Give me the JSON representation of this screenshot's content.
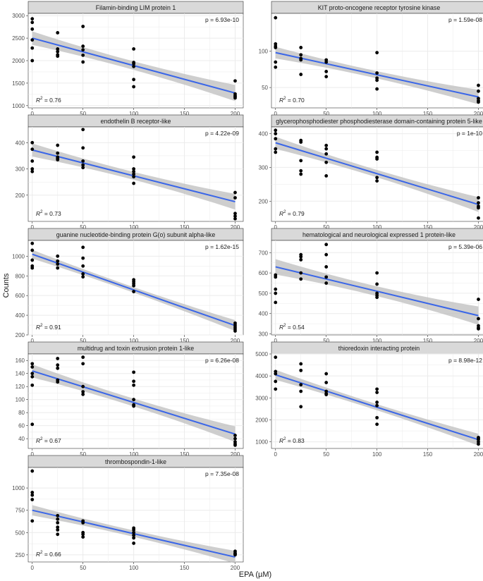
{
  "figure": {
    "ylabel": "Counts",
    "xlabel": "EPA (µM)",
    "r2_prefix": "R",
    "r2_sup": "2",
    "x_ticks": [
      "0",
      "50",
      "100",
      "150",
      "200"
    ]
  },
  "colors": {
    "strip_bg": "#d9d9d9",
    "panel_bg": "#ffffff",
    "grid": "#ebebeb",
    "line": "#3a66e8",
    "band": "#bdbdbd",
    "point": "#000000",
    "axis_text": "#4d4d4d"
  },
  "chart_data": [
    {
      "type": "scatter",
      "title": "Filamin-binding LIM protein 1",
      "p_label": "p = 6.93e-10",
      "r2": "0.76",
      "x_domain": [
        -4,
        208
      ],
      "ylim": [
        950,
        3050
      ],
      "y_ticks": [
        1000,
        1500,
        2000,
        2500,
        3000
      ],
      "points": [
        [
          0,
          2930
        ],
        [
          0,
          2850
        ],
        [
          0,
          2700
        ],
        [
          0,
          2460
        ],
        [
          0,
          2280
        ],
        [
          0,
          2000
        ],
        [
          25,
          2620
        ],
        [
          25,
          2260
        ],
        [
          25,
          2200
        ],
        [
          25,
          2130
        ],
        [
          25,
          2100
        ],
        [
          50,
          2760
        ],
        [
          50,
          2320
        ],
        [
          50,
          2240
        ],
        [
          50,
          2120
        ],
        [
          50,
          1970
        ],
        [
          100,
          2260
        ],
        [
          100,
          1960
        ],
        [
          100,
          1930
        ],
        [
          100,
          1870
        ],
        [
          100,
          1580
        ],
        [
          100,
          1420
        ],
        [
          200,
          1550
        ],
        [
          200,
          1260
        ],
        [
          200,
          1220
        ],
        [
          200,
          1200
        ],
        [
          200,
          1170
        ]
      ],
      "fit": [
        [
          0,
          2500
        ],
        [
          200,
          1280
        ]
      ],
      "band_halfwidth": [
        150,
        95,
        180
      ]
    },
    {
      "type": "scatter",
      "title": "KIT proto-oncogene receptor tyrosine kinase",
      "p_label": "p = 1.59e-08",
      "r2": "0.70",
      "x_domain": [
        -4,
        208
      ],
      "ylim": [
        22,
        152
      ],
      "y_ticks": [
        50,
        100
      ],
      "points": [
        [
          0,
          146
        ],
        [
          0,
          110
        ],
        [
          0,
          107
        ],
        [
          0,
          105
        ],
        [
          0,
          85
        ],
        [
          0,
          78
        ],
        [
          25,
          105
        ],
        [
          25,
          95
        ],
        [
          25,
          90
        ],
        [
          25,
          88
        ],
        [
          25,
          68
        ],
        [
          50,
          88
        ],
        [
          50,
          85
        ],
        [
          50,
          72
        ],
        [
          50,
          65
        ],
        [
          100,
          98
        ],
        [
          100,
          70
        ],
        [
          100,
          63
        ],
        [
          100,
          60
        ],
        [
          100,
          48
        ],
        [
          200,
          53
        ],
        [
          200,
          45
        ],
        [
          200,
          35
        ],
        [
          200,
          32
        ],
        [
          200,
          30
        ]
      ],
      "fit": [
        [
          0,
          98
        ],
        [
          200,
          37
        ]
      ],
      "band_halfwidth": [
        8,
        5,
        10
      ]
    },
    {
      "type": "scatter",
      "title": "endothelin B receptor-like",
      "p_label": "p = 4.22e-09",
      "r2": "0.73",
      "x_domain": [
        -4,
        208
      ],
      "ylim": [
        100,
        460
      ],
      "y_ticks": [
        200,
        300,
        400
      ],
      "points": [
        [
          0,
          400
        ],
        [
          0,
          375
        ],
        [
          0,
          330
        ],
        [
          0,
          300
        ],
        [
          0,
          290
        ],
        [
          25,
          390
        ],
        [
          25,
          360
        ],
        [
          25,
          345
        ],
        [
          25,
          340
        ],
        [
          25,
          335
        ],
        [
          50,
          450
        ],
        [
          50,
          380
        ],
        [
          50,
          330
        ],
        [
          50,
          315
        ],
        [
          50,
          305
        ],
        [
          100,
          345
        ],
        [
          100,
          300
        ],
        [
          100,
          290
        ],
        [
          100,
          280
        ],
        [
          100,
          270
        ],
        [
          100,
          245
        ],
        [
          200,
          210
        ],
        [
          200,
          190
        ],
        [
          200,
          130
        ],
        [
          200,
          120
        ],
        [
          200,
          110
        ]
      ],
      "fit": [
        [
          0,
          372
        ],
        [
          200,
          175
        ]
      ],
      "band_halfwidth": [
        25,
        15,
        30
      ]
    },
    {
      "type": "scatter",
      "title": "glycerophosphodiester phosphodiesterase domain-containing protein 5-like",
      "p_label": "p = 1e-10",
      "r2": "0.79",
      "x_domain": [
        -4,
        208
      ],
      "ylim": [
        140,
        420
      ],
      "y_ticks": [
        200,
        300,
        400
      ],
      "points": [
        [
          0,
          410
        ],
        [
          0,
          400
        ],
        [
          0,
          385
        ],
        [
          0,
          355
        ],
        [
          0,
          345
        ],
        [
          25,
          380
        ],
        [
          25,
          375
        ],
        [
          25,
          320
        ],
        [
          25,
          290
        ],
        [
          25,
          280
        ],
        [
          50,
          365
        ],
        [
          50,
          355
        ],
        [
          50,
          340
        ],
        [
          50,
          315
        ],
        [
          50,
          275
        ],
        [
          100,
          345
        ],
        [
          100,
          330
        ],
        [
          100,
          325
        ],
        [
          100,
          270
        ],
        [
          100,
          260
        ],
        [
          200,
          210
        ],
        [
          200,
          195
        ],
        [
          200,
          185
        ],
        [
          200,
          180
        ],
        [
          200,
          150
        ]
      ],
      "fit": [
        [
          0,
          373
        ],
        [
          200,
          190
        ]
      ],
      "band_halfwidth": [
        18,
        11,
        22
      ]
    },
    {
      "type": "scatter",
      "title": "guanine nucleotide-binding protein G(o) subunit alpha-like",
      "p_label": "p = 1.62e-15",
      "r2": "0.91",
      "x_domain": [
        -4,
        208
      ],
      "ylim": [
        200,
        1160
      ],
      "y_ticks": [
        200,
        400,
        600,
        800,
        1000
      ],
      "points": [
        [
          0,
          1130
        ],
        [
          0,
          1060
        ],
        [
          0,
          960
        ],
        [
          0,
          900
        ],
        [
          0,
          880
        ],
        [
          25,
          1000
        ],
        [
          25,
          950
        ],
        [
          25,
          920
        ],
        [
          25,
          880
        ],
        [
          50,
          1090
        ],
        [
          50,
          980
        ],
        [
          50,
          900
        ],
        [
          50,
          820
        ],
        [
          50,
          790
        ],
        [
          100,
          760
        ],
        [
          100,
          740
        ],
        [
          100,
          720
        ],
        [
          100,
          700
        ],
        [
          100,
          640
        ],
        [
          200,
          320
        ],
        [
          200,
          300
        ],
        [
          200,
          280
        ],
        [
          200,
          260
        ],
        [
          200,
          240
        ]
      ],
      "fit": [
        [
          0,
          1020
        ],
        [
          200,
          295
        ]
      ],
      "band_halfwidth": [
        45,
        28,
        55
      ]
    },
    {
      "type": "scatter",
      "title": "hematological and neurological expressed 1 protein-like",
      "p_label": "p = 5.39e-06",
      "r2": "0.54",
      "x_domain": [
        -4,
        208
      ],
      "ylim": [
        295,
        760
      ],
      "y_ticks": [
        300,
        400,
        500,
        600,
        700
      ],
      "points": [
        [
          0,
          590
        ],
        [
          0,
          580
        ],
        [
          0,
          520
        ],
        [
          0,
          500
        ],
        [
          0,
          455
        ],
        [
          25,
          690
        ],
        [
          25,
          680
        ],
        [
          25,
          665
        ],
        [
          25,
          600
        ],
        [
          25,
          570
        ],
        [
          50,
          740
        ],
        [
          50,
          690
        ],
        [
          50,
          630
        ],
        [
          50,
          580
        ],
        [
          50,
          550
        ],
        [
          100,
          600
        ],
        [
          100,
          545
        ],
        [
          100,
          500
        ],
        [
          100,
          490
        ],
        [
          100,
          480
        ],
        [
          200,
          470
        ],
        [
          200,
          375
        ],
        [
          200,
          340
        ],
        [
          200,
          330
        ],
        [
          200,
          325
        ]
      ],
      "fit": [
        [
          0,
          630
        ],
        [
          200,
          390
        ]
      ],
      "band_halfwidth": [
        38,
        24,
        45
      ]
    },
    {
      "type": "scatter",
      "title": "multidrug and toxin extrusion protein 1-like",
      "p_label": "p = 6.26e-08",
      "r2": "0.67",
      "x_domain": [
        -4,
        208
      ],
      "ylim": [
        25,
        170
      ],
      "y_ticks": [
        40,
        60,
        80,
        100,
        120,
        140,
        160
      ],
      "points": [
        [
          0,
          155
        ],
        [
          0,
          150
        ],
        [
          0,
          140
        ],
        [
          0,
          135
        ],
        [
          0,
          122
        ],
        [
          0,
          62
        ],
        [
          25,
          163
        ],
        [
          25,
          153
        ],
        [
          25,
          148
        ],
        [
          25,
          130
        ],
        [
          25,
          127
        ],
        [
          50,
          165
        ],
        [
          50,
          155
        ],
        [
          50,
          120
        ],
        [
          50,
          112
        ],
        [
          50,
          108
        ],
        [
          100,
          142
        ],
        [
          100,
          128
        ],
        [
          100,
          122
        ],
        [
          100,
          100
        ],
        [
          100,
          92
        ],
        [
          100,
          90
        ],
        [
          200,
          45
        ],
        [
          200,
          40
        ],
        [
          200,
          35
        ],
        [
          200,
          32
        ],
        [
          200,
          30
        ]
      ],
      "fit": [
        [
          0,
          144
        ],
        [
          200,
          47
        ]
      ],
      "band_halfwidth": [
        10,
        6,
        12
      ]
    },
    {
      "type": "scatter",
      "title": "thioredoxin interacting protein",
      "p_label": "p = 8.98e-12",
      "r2": "0.83",
      "x_domain": [
        -4,
        208
      ],
      "ylim": [
        700,
        5000
      ],
      "y_ticks": [
        1000,
        2000,
        3000,
        4000,
        5000
      ],
      "points": [
        [
          0,
          4850
        ],
        [
          0,
          4200
        ],
        [
          0,
          4100
        ],
        [
          0,
          3750
        ],
        [
          0,
          3400
        ],
        [
          25,
          4550
        ],
        [
          25,
          4250
        ],
        [
          25,
          3600
        ],
        [
          25,
          3300
        ],
        [
          25,
          2600
        ],
        [
          50,
          4100
        ],
        [
          50,
          3700
        ],
        [
          50,
          3300
        ],
        [
          50,
          3200
        ],
        [
          50,
          3150
        ],
        [
          100,
          3400
        ],
        [
          100,
          3250
        ],
        [
          100,
          2800
        ],
        [
          100,
          2650
        ],
        [
          100,
          2100
        ],
        [
          100,
          1800
        ],
        [
          200,
          1200
        ],
        [
          200,
          1150
        ],
        [
          200,
          1100
        ],
        [
          200,
          1000
        ],
        [
          200,
          900
        ]
      ],
      "fit": [
        [
          0,
          4050
        ],
        [
          200,
          1100
        ]
      ],
      "band_halfwidth": [
        230,
        140,
        270
      ]
    },
    {
      "type": "scatter",
      "title": "thrombospondin-1-like",
      "p_label": "p = 7.35e-08",
      "r2": "0.66",
      "x_domain": [
        -4,
        208
      ],
      "ylim": [
        170,
        1230
      ],
      "y_ticks": [
        250,
        500,
        750,
        1000
      ],
      "points": [
        [
          0,
          1190
        ],
        [
          0,
          950
        ],
        [
          0,
          920
        ],
        [
          0,
          870
        ],
        [
          0,
          630
        ],
        [
          25,
          690
        ],
        [
          25,
          650
        ],
        [
          25,
          610
        ],
        [
          25,
          560
        ],
        [
          25,
          530
        ],
        [
          25,
          480
        ],
        [
          50,
          630
        ],
        [
          50,
          610
        ],
        [
          50,
          500
        ],
        [
          50,
          480
        ],
        [
          50,
          450
        ],
        [
          100,
          550
        ],
        [
          100,
          530
        ],
        [
          100,
          500
        ],
        [
          100,
          470
        ],
        [
          100,
          440
        ],
        [
          100,
          380
        ],
        [
          200,
          290
        ],
        [
          200,
          270
        ],
        [
          200,
          260
        ],
        [
          200,
          250
        ]
      ],
      "fit": [
        [
          0,
          750
        ],
        [
          200,
          225
        ]
      ],
      "band_halfwidth": [
        58,
        36,
        70
      ]
    }
  ]
}
